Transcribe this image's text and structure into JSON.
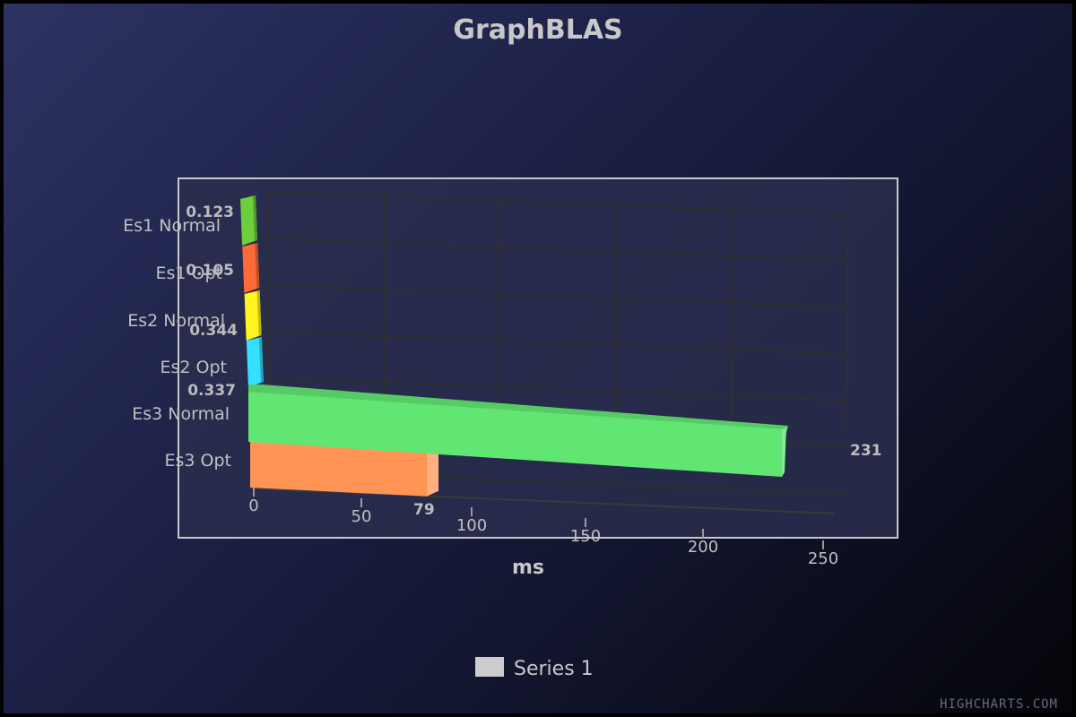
{
  "chart_data": {
    "type": "bar",
    "title": "GraphBLAS",
    "xlabel": "ms",
    "categories": [
      "Es1 Normal",
      "Es1 Opt",
      "Es2 Normal",
      "Es2 Opt",
      "Es3 Normal",
      "Es3 Opt"
    ],
    "series": [
      {
        "name": "Series 1",
        "values": [
          0.123,
          0.105,
          0.344,
          0.337,
          231,
          79
        ],
        "data_labels": [
          "0.123",
          "0.105",
          "0.344",
          "0.337",
          "231",
          "79"
        ]
      }
    ],
    "bar_colors": [
      "#6ccf3b",
      "#ff6a37",
      "#fff41d",
      "#33e0ff",
      "#62e673",
      "#ff9455"
    ],
    "xlim": [
      0,
      250
    ],
    "xticks": [
      0,
      50,
      100,
      150,
      200,
      250
    ],
    "grid": true,
    "orientation": "horizontal",
    "style": "3d",
    "legend": {
      "position": "bottom-center",
      "swatch_color": "#cccccc"
    }
  },
  "credits": "HIGHCHARTS.COM",
  "colors": {
    "background_start": "#2d3362",
    "background_end": "#050509",
    "plot_border": "#c8c8c8",
    "grid": "#2f2f2f",
    "text": "#c0c0c0"
  }
}
